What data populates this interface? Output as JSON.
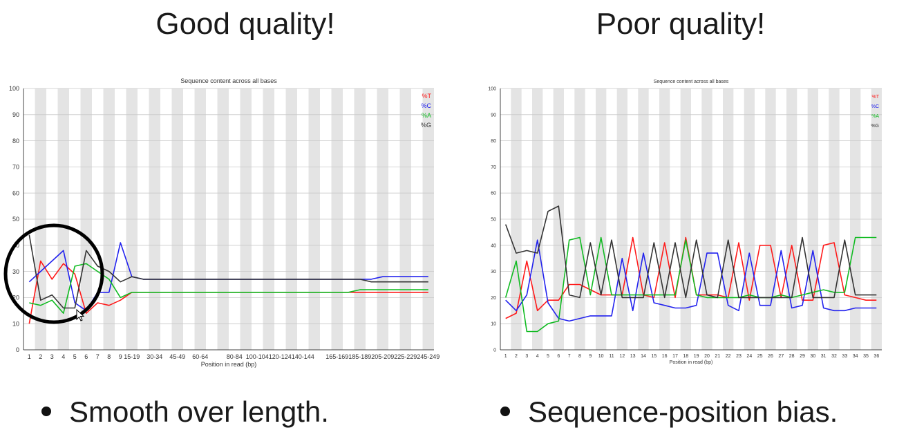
{
  "headings": {
    "left": "Good quality!",
    "right": "Poor quality!"
  },
  "bullets": {
    "left": "Smooth over length.",
    "right": "Sequence-position bias."
  },
  "colors": {
    "T": "#ff1a1a",
    "C": "#2222ee",
    "A": "#11bb22",
    "G": "#333333",
    "stripe": "#e4e4e4"
  },
  "chart_data": [
    {
      "type": "line",
      "title": "Sequence content across all bases",
      "xlabel": "Position in read (bp)",
      "ylabel": "",
      "ylim": [
        0,
        100
      ],
      "yticks": [
        0,
        10,
        20,
        30,
        40,
        50,
        60,
        70,
        80,
        90,
        100
      ],
      "grid": true,
      "legend": "top-right",
      "categories": [
        "1",
        "2",
        "3",
        "4",
        "5",
        "6",
        "7",
        "8",
        "9",
        "15-19",
        "",
        "30-34",
        "",
        "45-49",
        "",
        "60-64",
        "",
        "",
        "80-84",
        "",
        "100-104",
        "",
        "120-124",
        "",
        "140-144",
        "",
        "",
        "165-169",
        "",
        "185-189",
        "",
        "205-209",
        "",
        "225-229",
        "",
        "245-249"
      ],
      "series": [
        {
          "name": "%T",
          "color": "#ff1a1a",
          "values": [
            10,
            34,
            27,
            33,
            29,
            14,
            18,
            17,
            19,
            22,
            22,
            22,
            22,
            22,
            22,
            22,
            22,
            22,
            22,
            22,
            22,
            22,
            22,
            22,
            22,
            22,
            22,
            22,
            22,
            22,
            22,
            22,
            22,
            22,
            22,
            22
          ]
        },
        {
          "name": "%C",
          "color": "#2222ee",
          "values": [
            26,
            30,
            34,
            38,
            18,
            15,
            22,
            22,
            41,
            28,
            27,
            27,
            27,
            27,
            27,
            27,
            27,
            27,
            27,
            27,
            27,
            27,
            27,
            27,
            27,
            27,
            27,
            27,
            27,
            27,
            27,
            28,
            28,
            28,
            28,
            28
          ]
        },
        {
          "name": "%A",
          "color": "#11bb22",
          "values": [
            18,
            17,
            19,
            14,
            32,
            33,
            30,
            27,
            20,
            22,
            22,
            22,
            22,
            22,
            22,
            22,
            22,
            22,
            22,
            22,
            22,
            22,
            22,
            22,
            22,
            22,
            22,
            22,
            22,
            23,
            23,
            23,
            23,
            23,
            23,
            23
          ]
        },
        {
          "name": "%G",
          "color": "#333333",
          "values": [
            44,
            19,
            21,
            16,
            16,
            38,
            32,
            30,
            26,
            28,
            27,
            27,
            27,
            27,
            27,
            27,
            27,
            27,
            27,
            27,
            27,
            27,
            27,
            27,
            27,
            27,
            27,
            27,
            27,
            27,
            26,
            26,
            26,
            26,
            26,
            26
          ]
        }
      ]
    },
    {
      "type": "line",
      "title": "Sequence content across all bases",
      "xlabel": "Position in read (bp)",
      "ylabel": "",
      "ylim": [
        0,
        100
      ],
      "yticks": [
        0,
        10,
        20,
        30,
        40,
        50,
        60,
        70,
        80,
        90,
        100
      ],
      "grid": true,
      "legend": "top-right",
      "categories": [
        "1",
        "2",
        "3",
        "4",
        "5",
        "6",
        "7",
        "8",
        "9",
        "10",
        "11",
        "12",
        "13",
        "14",
        "15",
        "16",
        "17",
        "18",
        "19",
        "20",
        "21",
        "22",
        "23",
        "24",
        "25",
        "26",
        "27",
        "28",
        "29",
        "30",
        "31",
        "32",
        "33",
        "34",
        "35",
        "36"
      ],
      "series": [
        {
          "name": "%T",
          "color": "#ff1a1a",
          "values": [
            12,
            14,
            34,
            15,
            19,
            19,
            25,
            25,
            23,
            21,
            21,
            21,
            43,
            21,
            20,
            41,
            20,
            43,
            21,
            21,
            21,
            20,
            41,
            19,
            40,
            40,
            20,
            40,
            19,
            19,
            40,
            41,
            21,
            20,
            19,
            19
          ]
        },
        {
          "name": "%C",
          "color": "#2222ee",
          "values": [
            19,
            15,
            21,
            42,
            18,
            12,
            11,
            12,
            13,
            13,
            13,
            35,
            15,
            37,
            18,
            17,
            16,
            16,
            17,
            37,
            37,
            17,
            15,
            37,
            17,
            17,
            38,
            16,
            17,
            38,
            16,
            15,
            15,
            16,
            16,
            16
          ]
        },
        {
          "name": "%A",
          "color": "#11bb22",
          "values": [
            20,
            34,
            7,
            7,
            10,
            11,
            42,
            43,
            21,
            43,
            21,
            21,
            21,
            21,
            21,
            21,
            21,
            42,
            21,
            20,
            20,
            20,
            20,
            21,
            20,
            20,
            21,
            20,
            21,
            22,
            23,
            22,
            22,
            43,
            43,
            43
          ]
        },
        {
          "name": "%G",
          "color": "#333333",
          "values": [
            48,
            37,
            38,
            37,
            53,
            55,
            21,
            20,
            41,
            21,
            42,
            20,
            20,
            20,
            41,
            20,
            41,
            20,
            42,
            21,
            20,
            42,
            20,
            20,
            20,
            20,
            20,
            20,
            43,
            20,
            20,
            20,
            42,
            21,
            21,
            21
          ]
        }
      ]
    }
  ]
}
